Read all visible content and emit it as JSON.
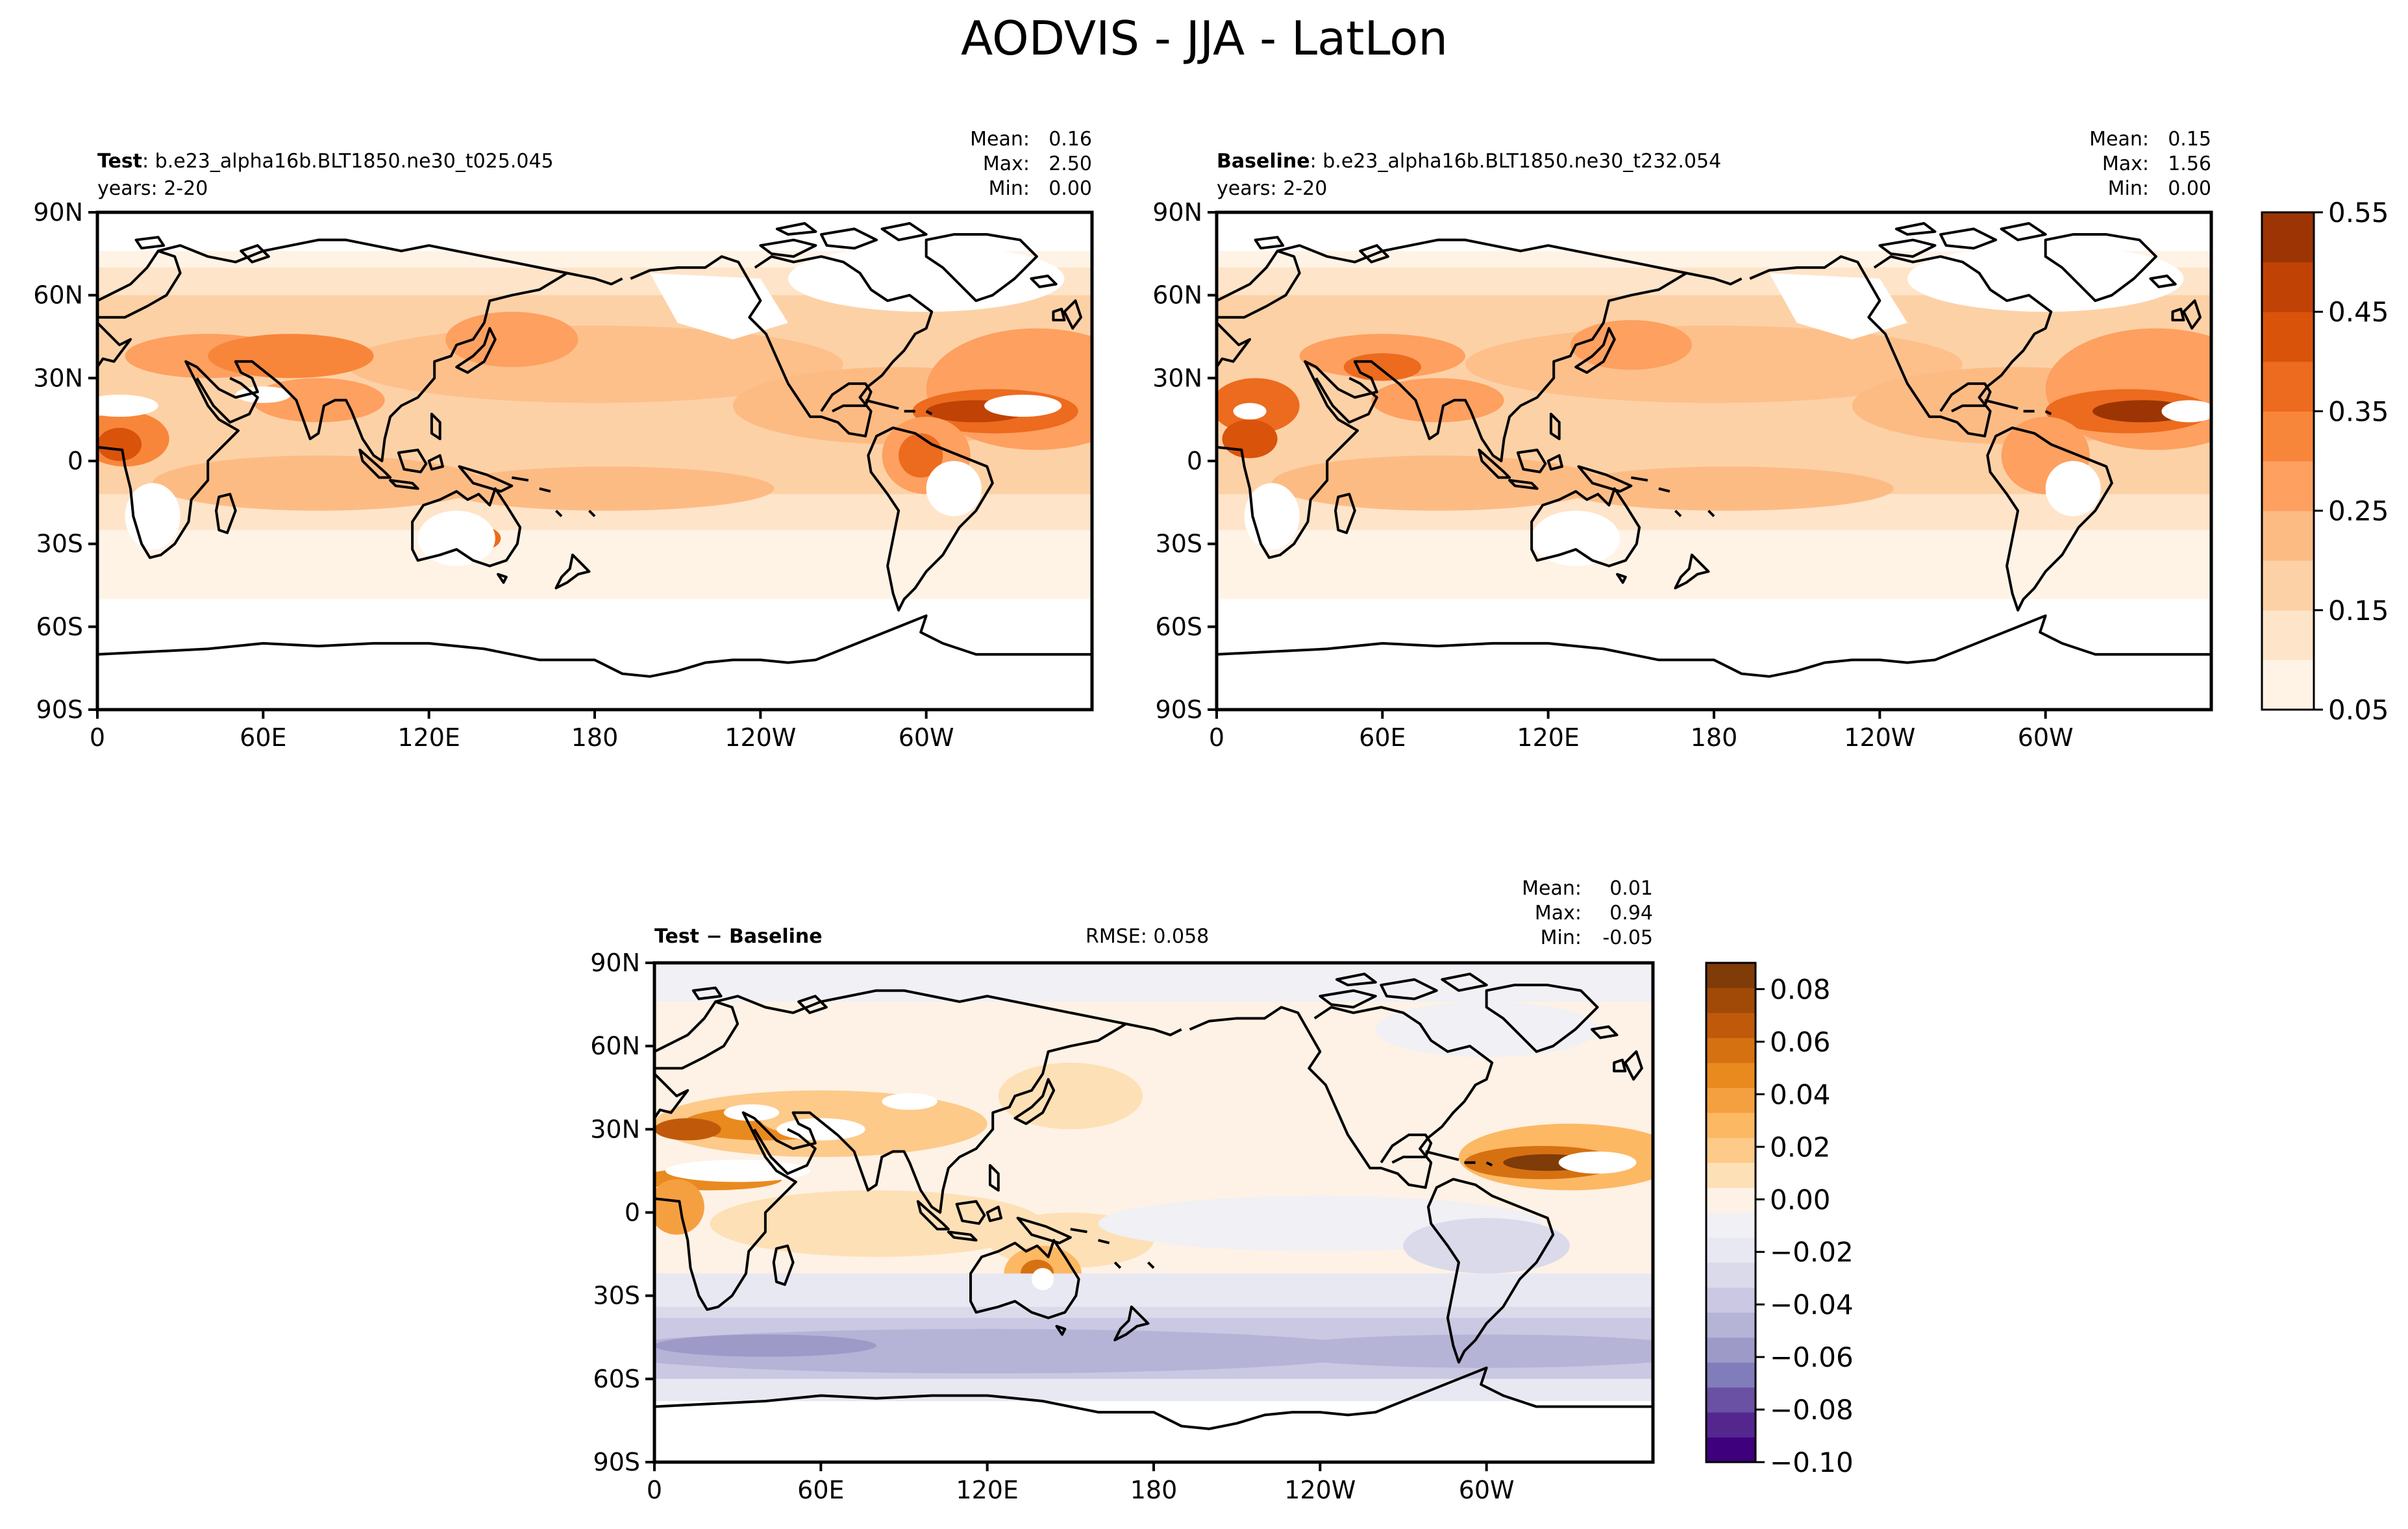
{
  "figure": {
    "title": "AODVIS - JJA - LatLon"
  },
  "colors": {
    "oranges": [
      "#fff3e6",
      "#fee4c9",
      "#fdd1a6",
      "#fdbb84",
      "#fda060",
      "#f8863a",
      "#ec6b1e",
      "#d9530b",
      "#c14205",
      "#9c3503",
      "#7f2704"
    ],
    "diff_neg": [
      "#3f007d",
      "#54278f",
      "#6a51a3",
      "#807dba",
      "#9e9ac8",
      "#b5b3d6",
      "#cac8e2",
      "#dadaeb",
      "#e8e8f2",
      "#f0f0f5"
    ],
    "diff_pos": [
      "#fdf2e5",
      "#fee0b6",
      "#fdca8a",
      "#fdb863",
      "#f5a040",
      "#e98a1f",
      "#d67112",
      "#c05a0a",
      "#a14a08",
      "#7f3b08"
    ]
  },
  "panels": [
    {
      "id": "test",
      "label_bold": "Test",
      "label_rest": ": b.e23_alpha16b.BLT1850.ne30_t025.045",
      "years": "years: 2-20",
      "stats": {
        "mean_label": "Mean:",
        "mean": "0.16",
        "max_label": "Max:",
        "max": "2.50",
        "min_label": "Min:",
        "min": "0.00"
      }
    },
    {
      "id": "baseline",
      "label_bold": "Baseline",
      "label_rest": ": b.e23_alpha16b.BLT1850.ne30_t232.054",
      "years": "years: 2-20",
      "stats": {
        "mean_label": "Mean:",
        "mean": "0.15",
        "max_label": "Max:",
        "max": "1.56",
        "min_label": "Min:",
        "min": "0.00"
      }
    },
    {
      "id": "diff",
      "label_bold": "Test − Baseline",
      "rmse": "RMSE: 0.058",
      "stats": {
        "mean_label": "Mean:",
        "mean": "0.01",
        "max_label": "Max:",
        "max": "0.94",
        "min_label": "Min:",
        "min": "-0.05"
      }
    }
  ],
  "chart_data": [
    {
      "type": "heatmap",
      "name": "Test",
      "projection": "PlateCarree, central longitude 180",
      "xticks": [
        "0",
        "60E",
        "120E",
        "180",
        "120W",
        "60W"
      ],
      "yticks": [
        "90N",
        "60N",
        "30N",
        "0",
        "30S",
        "60S",
        "90S"
      ],
      "xlim_deg": [
        0,
        360
      ],
      "ylim_deg": [
        -90,
        90
      ],
      "stats": {
        "mean": 0.16,
        "max": 2.5,
        "min": 0.0
      }
    },
    {
      "type": "heatmap",
      "name": "Baseline",
      "projection": "PlateCarree, central longitude 180",
      "xticks": [
        "0",
        "60E",
        "120E",
        "180",
        "120W",
        "60W"
      ],
      "yticks": [
        "90N",
        "60N",
        "30N",
        "0",
        "30S",
        "60S",
        "90S"
      ],
      "xlim_deg": [
        0,
        360
      ],
      "ylim_deg": [
        -90,
        90
      ],
      "stats": {
        "mean": 0.15,
        "max": 1.56,
        "min": 0.0
      }
    },
    {
      "type": "heatmap",
      "name": "Test - Baseline",
      "projection": "PlateCarree, central longitude 180",
      "xticks": [
        "0",
        "60E",
        "120E",
        "180",
        "120W",
        "60W"
      ],
      "yticks": [
        "90N",
        "60N",
        "30N",
        "0",
        "30S",
        "60S",
        "90S"
      ],
      "xlim_deg": [
        0,
        360
      ],
      "ylim_deg": [
        -90,
        90
      ],
      "rmse": 0.058,
      "stats": {
        "mean": 0.01,
        "max": 0.94,
        "min": -0.05
      }
    }
  ],
  "colorbars": {
    "main": {
      "min": 0.05,
      "max": 0.55,
      "levels": 10,
      "ticks": [
        "0.55",
        "0.45",
        "0.35",
        "0.25",
        "0.15",
        "0.05"
      ]
    },
    "diff": {
      "min": -0.1,
      "max": 0.09,
      "levels": 19,
      "ticks": [
        "0.08",
        "0.06",
        "0.04",
        "0.02",
        "0.00",
        "−0.02",
        "−0.04",
        "−0.06",
        "−0.08",
        "−0.10"
      ]
    }
  }
}
